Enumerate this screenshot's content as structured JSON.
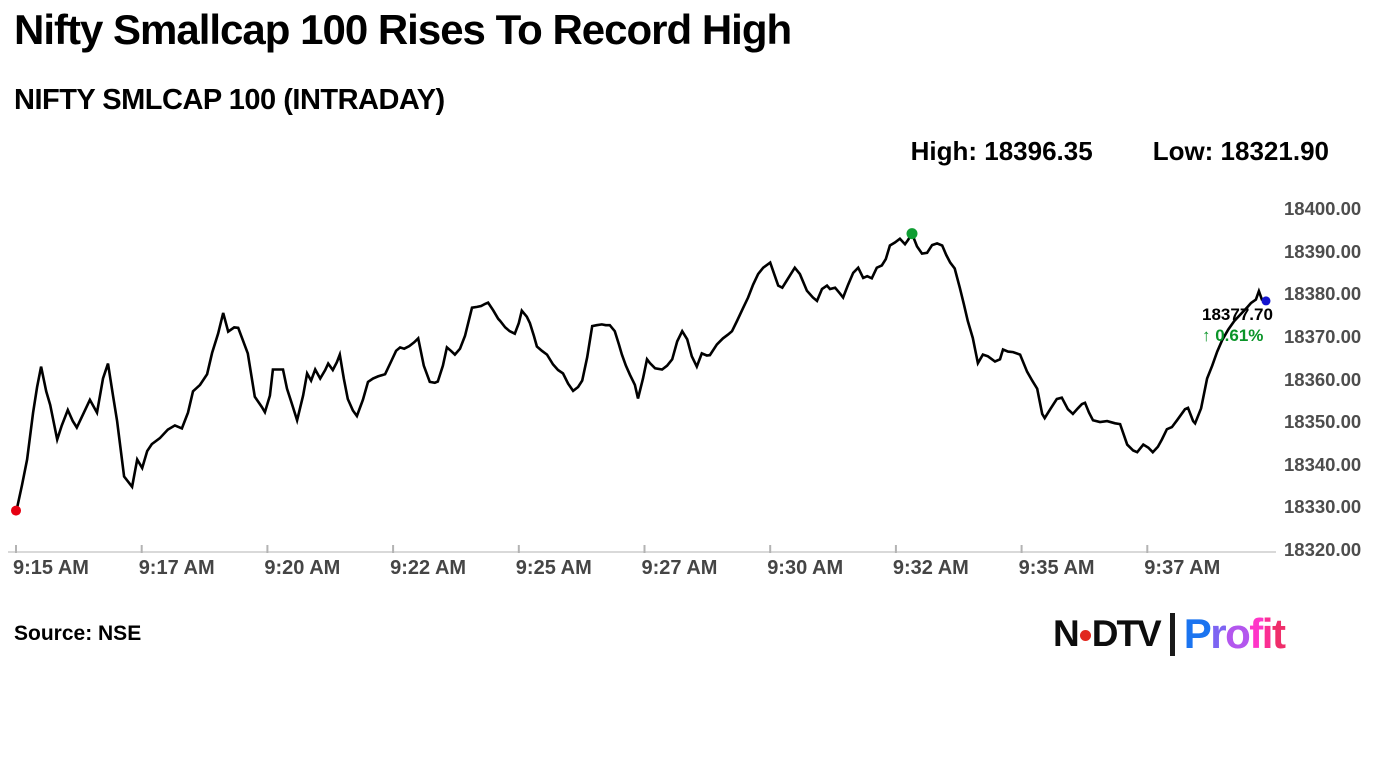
{
  "header": {
    "title": "Nifty Smallcap 100 Rises To Record High",
    "subtitle": "NIFTY SMLCAP 100 (INTRADAY)",
    "high_label": "High: 18396.35",
    "low_label": "Low: 18321.90"
  },
  "annotation": {
    "last_price": "18377.70",
    "change": "↑ 0.61%",
    "change_color": "#0a9428"
  },
  "footer": {
    "source": "Source: NSE",
    "logo": {
      "n": "N",
      "dtv": "DTV",
      "dot_color": "#e1261d",
      "divider_color": "#1a1a1a",
      "profit_letters": [
        {
          "ch": "P",
          "c": "#1b74f0"
        },
        {
          "ch": "r",
          "c": "#7d64f2"
        },
        {
          "ch": "o",
          "c": "#b356ee"
        },
        {
          "ch": "f",
          "c": "#ff35c8"
        },
        {
          "ch": "i",
          "c": "#fb2f93"
        },
        {
          "ch": "t",
          "c": "#ef2e6a"
        }
      ]
    }
  },
  "chart_data": {
    "type": "line",
    "title": "NIFTY SMLCAP 100 (INTRADAY)",
    "high": 18396.35,
    "low": 18321.9,
    "last": 18377.7,
    "change_pct": 0.61,
    "legend": "none",
    "grid": "off",
    "line_color": "#000000",
    "axis_line_color": "#d9d9d9",
    "tick_color": "#b3b3b3",
    "axis_text_color": "#4d4d4d",
    "x_axis": {
      "unit": "time of day, minutes after 9:15 AM, one tick per 2.5 min",
      "ticks": [
        {
          "label": "9:15 AM",
          "t": 0
        },
        {
          "label": "9:17 AM",
          "t": 2.5
        },
        {
          "label": "9:20 AM",
          "t": 5
        },
        {
          "label": "9:22 AM",
          "t": 7.5
        },
        {
          "label": "9:25 AM",
          "t": 10
        },
        {
          "label": "9:27 AM",
          "t": 12.5
        },
        {
          "label": "9:30 AM",
          "t": 15
        },
        {
          "label": "9:32 AM",
          "t": 17.5
        },
        {
          "label": "9:35 AM",
          "t": 20
        },
        {
          "label": "9:37 AM",
          "t": 22.5
        }
      ]
    },
    "y_axis": {
      "min": 18320,
      "max": 18400,
      "ticks": [
        {
          "label": "18400.00",
          "v": 18400
        },
        {
          "label": "18390.00",
          "v": 18390
        },
        {
          "label": "18380.00",
          "v": 18380
        },
        {
          "label": "18370.00",
          "v": 18370
        },
        {
          "label": "18360.00",
          "v": 18360
        },
        {
          "label": "18350.00",
          "v": 18350
        },
        {
          "label": "18340.00",
          "v": 18340
        },
        {
          "label": "18330.00",
          "v": 18330
        },
        {
          "label": "18320.00",
          "v": 18320
        }
      ]
    },
    "markers": {
      "open": {
        "t": 0,
        "v": 18329,
        "color": "#e60012",
        "r": 5
      },
      "high": {
        "t": 17.82,
        "v": 18394,
        "color": "#0f9d33",
        "r": 5.5
      },
      "last": {
        "t": 24.86,
        "v": 18378.2,
        "color": "#1414cf",
        "r": 4.5
      }
    },
    "points": [
      [
        0,
        18328.5
      ],
      [
        0.12,
        18335
      ],
      [
        0.22,
        18341
      ],
      [
        0.34,
        18352
      ],
      [
        0.42,
        18358
      ],
      [
        0.5,
        18362.8
      ],
      [
        0.6,
        18357
      ],
      [
        0.68,
        18353.8
      ],
      [
        0.82,
        18345.7
      ],
      [
        0.91,
        18349
      ],
      [
        1.03,
        18352.6
      ],
      [
        1.13,
        18350
      ],
      [
        1.21,
        18348.5
      ],
      [
        1.35,
        18352
      ],
      [
        1.47,
        18355
      ],
      [
        1.61,
        18352
      ],
      [
        1.73,
        18360
      ],
      [
        1.83,
        18363.5
      ],
      [
        1.93,
        18356
      ],
      [
        2.01,
        18350
      ],
      [
        2.15,
        18337
      ],
      [
        2.31,
        18334.6
      ],
      [
        2.41,
        18341
      ],
      [
        2.51,
        18339
      ],
      [
        2.61,
        18343
      ],
      [
        2.7,
        18344.6
      ],
      [
        2.86,
        18346
      ],
      [
        3.02,
        18348
      ],
      [
        3.16,
        18349
      ],
      [
        3.3,
        18348.3
      ],
      [
        3.42,
        18352
      ],
      [
        3.52,
        18357
      ],
      [
        3.66,
        18358.5
      ],
      [
        3.8,
        18361
      ],
      [
        3.9,
        18366
      ],
      [
        4.02,
        18370.5
      ],
      [
        4.12,
        18375.4
      ],
      [
        4.22,
        18371
      ],
      [
        4.34,
        18372
      ],
      [
        4.42,
        18371.9
      ],
      [
        4.51,
        18369
      ],
      [
        4.61,
        18365.9
      ],
      [
        4.75,
        18355.7
      ],
      [
        4.89,
        18353.3
      ],
      [
        4.95,
        18352.1
      ],
      [
        5.05,
        18356
      ],
      [
        5.11,
        18362.1
      ],
      [
        5.31,
        18362.1
      ],
      [
        5.39,
        18357.6
      ],
      [
        5.49,
        18354
      ],
      [
        5.59,
        18350.2
      ],
      [
        5.71,
        18356
      ],
      [
        5.79,
        18361.2
      ],
      [
        5.87,
        18359.5
      ],
      [
        5.95,
        18362.1
      ],
      [
        6.05,
        18360
      ],
      [
        6.15,
        18362
      ],
      [
        6.21,
        18363.5
      ],
      [
        6.3,
        18362
      ],
      [
        6.38,
        18363.8
      ],
      [
        6.44,
        18365.6
      ],
      [
        6.52,
        18360
      ],
      [
        6.6,
        18355.2
      ],
      [
        6.7,
        18352.5
      ],
      [
        6.78,
        18351.2
      ],
      [
        6.9,
        18355
      ],
      [
        7,
        18359.2
      ],
      [
        7.1,
        18360
      ],
      [
        7.2,
        18360.5
      ],
      [
        7.34,
        18361
      ],
      [
        7.46,
        18364
      ],
      [
        7.56,
        18366.5
      ],
      [
        7.64,
        18367.3
      ],
      [
        7.72,
        18367
      ],
      [
        7.82,
        18367.6
      ],
      [
        7.92,
        18368.5
      ],
      [
        8,
        18369.4
      ],
      [
        8.11,
        18363
      ],
      [
        8.23,
        18359.2
      ],
      [
        8.33,
        18359
      ],
      [
        8.39,
        18359.3
      ],
      [
        8.49,
        18363
      ],
      [
        8.57,
        18367.3
      ],
      [
        8.65,
        18366.5
      ],
      [
        8.73,
        18365.6
      ],
      [
        8.83,
        18367
      ],
      [
        8.93,
        18370
      ],
      [
        9.07,
        18376.6
      ],
      [
        9.17,
        18376.8
      ],
      [
        9.25,
        18377
      ],
      [
        9.33,
        18377.5
      ],
      [
        9.39,
        18377.8
      ],
      [
        9.49,
        18376
      ],
      [
        9.59,
        18374
      ],
      [
        9.63,
        18373.5
      ],
      [
        9.73,
        18372
      ],
      [
        9.82,
        18371.1
      ],
      [
        9.92,
        18370.5
      ],
      [
        10,
        18373
      ],
      [
        10.06,
        18375.9
      ],
      [
        10.16,
        18374.5
      ],
      [
        10.22,
        18373
      ],
      [
        10.3,
        18370
      ],
      [
        10.36,
        18367.5
      ],
      [
        10.46,
        18366.5
      ],
      [
        10.56,
        18365.6
      ],
      [
        10.68,
        18363.3
      ],
      [
        10.78,
        18362
      ],
      [
        10.88,
        18361.2
      ],
      [
        10.98,
        18358.8
      ],
      [
        11.08,
        18357.1
      ],
      [
        11.18,
        18358
      ],
      [
        11.26,
        18359.5
      ],
      [
        11.36,
        18365
      ],
      [
        11.46,
        18372.3
      ],
      [
        11.55,
        18372.5
      ],
      [
        11.65,
        18372.7
      ],
      [
        11.73,
        18372.5
      ],
      [
        11.81,
        18372.5
      ],
      [
        11.91,
        18371.1
      ],
      [
        11.99,
        18368
      ],
      [
        12.05,
        18365.6
      ],
      [
        12.13,
        18363
      ],
      [
        12.21,
        18360.9
      ],
      [
        12.31,
        18358.5
      ],
      [
        12.37,
        18355.3
      ],
      [
        12.47,
        18360
      ],
      [
        12.55,
        18364.5
      ],
      [
        12.61,
        18363.6
      ],
      [
        12.71,
        18362.4
      ],
      [
        12.85,
        18362.1
      ],
      [
        12.95,
        18363
      ],
      [
        13.05,
        18364.5
      ],
      [
        13.15,
        18368.7
      ],
      [
        13.25,
        18371.1
      ],
      [
        13.35,
        18369.2
      ],
      [
        13.44,
        18365.2
      ],
      [
        13.54,
        18362.8
      ],
      [
        13.64,
        18365.9
      ],
      [
        13.74,
        18365.4
      ],
      [
        13.8,
        18365.5
      ],
      [
        13.94,
        18368
      ],
      [
        14.06,
        18369.4
      ],
      [
        14.16,
        18370.3
      ],
      [
        14.24,
        18371.1
      ],
      [
        14.34,
        18373.5
      ],
      [
        14.46,
        18376.5
      ],
      [
        14.56,
        18379
      ],
      [
        14.66,
        18382
      ],
      [
        14.76,
        18384.5
      ],
      [
        14.86,
        18386
      ],
      [
        15,
        18387.2
      ],
      [
        15.08,
        18384.5
      ],
      [
        15.16,
        18381.8
      ],
      [
        15.24,
        18381.3
      ],
      [
        15.33,
        18383
      ],
      [
        15.41,
        18384.5
      ],
      [
        15.49,
        18386
      ],
      [
        15.59,
        18384.5
      ],
      [
        15.73,
        18380.6
      ],
      [
        15.85,
        18379
      ],
      [
        15.93,
        18378.2
      ],
      [
        16.03,
        18381
      ],
      [
        16.13,
        18381.8
      ],
      [
        16.19,
        18381
      ],
      [
        16.29,
        18381.3
      ],
      [
        16.39,
        18379.9
      ],
      [
        16.45,
        18379
      ],
      [
        16.55,
        18382
      ],
      [
        16.65,
        18384.8
      ],
      [
        16.75,
        18386
      ],
      [
        16.85,
        18383.6
      ],
      [
        16.93,
        18384
      ],
      [
        17.02,
        18383.5
      ],
      [
        17.12,
        18386
      ],
      [
        17.22,
        18386.5
      ],
      [
        17.3,
        18388
      ],
      [
        17.38,
        18391.2
      ],
      [
        17.48,
        18391.9
      ],
      [
        17.58,
        18392.8
      ],
      [
        17.68,
        18391.5
      ],
      [
        17.74,
        18392.5
      ],
      [
        17.82,
        18394
      ],
      [
        17.92,
        18391
      ],
      [
        18.02,
        18389.3
      ],
      [
        18.12,
        18389.5
      ],
      [
        18.22,
        18391.3
      ],
      [
        18.32,
        18391.7
      ],
      [
        18.42,
        18391.2
      ],
      [
        18.5,
        18389
      ],
      [
        18.58,
        18387.2
      ],
      [
        18.67,
        18385.8
      ],
      [
        18.77,
        18381.3
      ],
      [
        18.85,
        18377.5
      ],
      [
        18.93,
        18373.5
      ],
      [
        19.03,
        18369.5
      ],
      [
        19.13,
        18363.6
      ],
      [
        19.23,
        18365.6
      ],
      [
        19.33,
        18365.2
      ],
      [
        19.47,
        18364
      ],
      [
        19.57,
        18364.5
      ],
      [
        19.63,
        18366.8
      ],
      [
        19.73,
        18366.3
      ],
      [
        19.83,
        18366.2
      ],
      [
        19.97,
        18365.6
      ],
      [
        20.11,
        18361.6
      ],
      [
        20.21,
        18359.5
      ],
      [
        20.31,
        18357.6
      ],
      [
        20.41,
        18351.7
      ],
      [
        20.46,
        18350.7
      ],
      [
        20.58,
        18353
      ],
      [
        20.7,
        18355.2
      ],
      [
        20.8,
        18355.5
      ],
      [
        20.92,
        18352.8
      ],
      [
        21.02,
        18351.7
      ],
      [
        21.12,
        18353
      ],
      [
        21.2,
        18354
      ],
      [
        21.26,
        18354.3
      ],
      [
        21.34,
        18352
      ],
      [
        21.42,
        18350.2
      ],
      [
        21.56,
        18349.8
      ],
      [
        21.7,
        18350
      ],
      [
        21.86,
        18349.5
      ],
      [
        21.96,
        18349.3
      ],
      [
        22.1,
        18344.5
      ],
      [
        22.22,
        18343.1
      ],
      [
        22.3,
        18342.7
      ],
      [
        22.42,
        18344.5
      ],
      [
        22.52,
        18343.8
      ],
      [
        22.61,
        18342.7
      ],
      [
        22.71,
        18344
      ],
      [
        22.79,
        18345.7
      ],
      [
        22.89,
        18348.1
      ],
      [
        22.99,
        18348.6
      ],
      [
        23.09,
        18350.2
      ],
      [
        23.25,
        18352.8
      ],
      [
        23.31,
        18353.1
      ],
      [
        23.41,
        18350
      ],
      [
        23.45,
        18349.5
      ],
      [
        23.57,
        18353
      ],
      [
        23.69,
        18360
      ],
      [
        23.79,
        18363
      ],
      [
        23.89,
        18366.3
      ],
      [
        23.99,
        18369
      ],
      [
        24.11,
        18371.5
      ],
      [
        24.23,
        18373.5
      ],
      [
        24.35,
        18375
      ],
      [
        24.47,
        18376.5
      ],
      [
        24.56,
        18377.7
      ],
      [
        24.66,
        18378.5
      ],
      [
        24.72,
        18380.5
      ],
      [
        24.78,
        18378.5
      ],
      [
        24.86,
        18378.2
      ]
    ]
  }
}
